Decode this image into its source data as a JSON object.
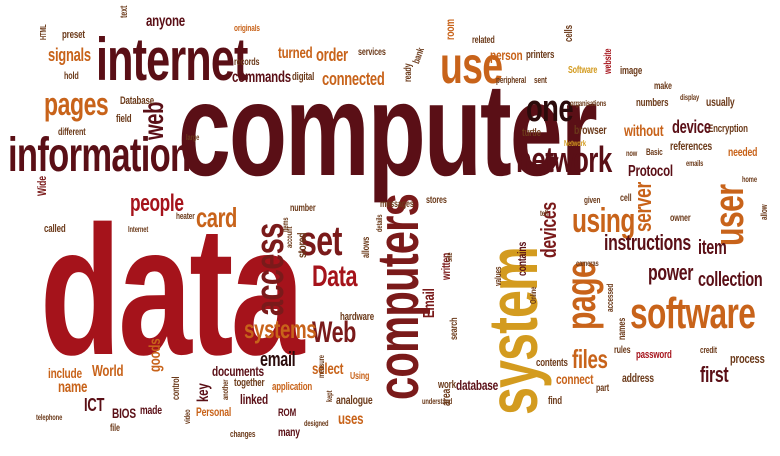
{
  "word_cloud": {
    "colors": {
      "dark_red": "#5a0f16",
      "red": "#a5131b",
      "maroon": "#7a1a1a",
      "brown": "#6b3a1a",
      "orange": "#c8631a",
      "gold": "#d39b1f",
      "black": "#2b0b0b"
    },
    "words": [
      "computer",
      "data",
      "information",
      "internet",
      "system",
      "computers",
      "use",
      "network",
      "user",
      "software",
      "pages",
      "one",
      "web",
      "access",
      "set",
      "page",
      "Data",
      "Web",
      "using",
      "devices",
      "server",
      "card",
      "people",
      "systems",
      "instructions",
      "item",
      "power",
      "collection",
      "email",
      "files",
      "select",
      "connected",
      "order",
      "turned",
      "commands",
      "records",
      "Database",
      "field",
      "different",
      "signals",
      "hold",
      "preset",
      "text",
      "anyone",
      "originals",
      "bank",
      "services",
      "room",
      "related",
      "printers",
      "cells",
      "website",
      "Software",
      "image",
      "make",
      "display",
      "usually",
      "numbers",
      "organisations",
      "peripheral",
      "sent",
      "ready",
      "person",
      "digital",
      "Encryption",
      "device",
      "without",
      "browser",
      "references",
      "needed",
      "Basic",
      "turtle",
      "Network",
      "now",
      "emails",
      "home",
      "Protocol",
      "allow",
      "owner",
      "cell",
      "given",
      "tell",
      "contains",
      "written",
      "stores",
      "messages",
      "details",
      "allows",
      "stored",
      "number",
      "account",
      "items",
      "heater",
      "Internet",
      "called",
      "Wide",
      "large",
      "HTML",
      "include",
      "name",
      "ICT",
      "World",
      "goods",
      "key",
      "control",
      "BIOS",
      "made",
      "telephone",
      "file",
      "video",
      "Personal",
      "another",
      "documents",
      "linked",
      "together",
      "application",
      "ROM",
      "changes",
      "many",
      "designed",
      "kept",
      "measure",
      "hardware",
      "Using",
      "analogue",
      "uses",
      "Email",
      "area",
      "database",
      "search",
      "site",
      "Online",
      "values",
      "cameras",
      "accessed",
      "names",
      "rules",
      "password",
      "credit",
      "process",
      "first",
      "address",
      "part",
      "connect",
      "contents",
      "work",
      "understand",
      "find"
    ]
  }
}
